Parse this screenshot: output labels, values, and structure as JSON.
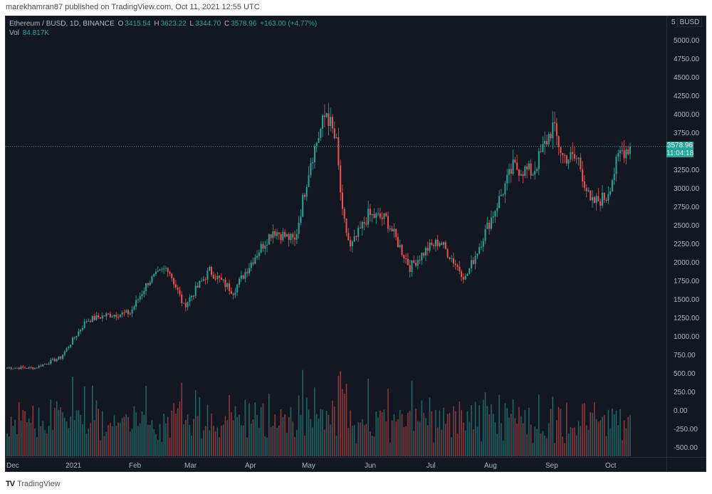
{
  "byline": "marekhamran87 published on TradingView.com, Oct 11, 2021 12:55 UTC",
  "legend": {
    "symbol": "Ethereum / BUSD, 1D, BINANCE",
    "open_label": "O",
    "open": "3415.54",
    "high_label": "H",
    "high": "3623.22",
    "low_label": "L",
    "low": "3344.70",
    "close_label": "C",
    "close": "3578.96",
    "change": "+163.00 (+4.77%)",
    "vol_label": "Vol",
    "vol": "84.817K"
  },
  "price_axis": {
    "unit_prefix": "5",
    "unit": "BUSD",
    "ticks": [
      "5000.00",
      "4750.00",
      "4500.00",
      "4250.00",
      "4000.00",
      "3750.00",
      "3250.00",
      "3000.00",
      "2750.00",
      "2500.00",
      "2250.00",
      "2000.00",
      "1750.00",
      "1500.00",
      "1250.00",
      "1000.00",
      "750.00",
      "500.00",
      "250.00",
      "0.00",
      "-250.00",
      "-500.00"
    ],
    "current_price": "3578.96",
    "countdown": "11:04:18"
  },
  "time_axis": {
    "ticks": [
      "Dec",
      "2021",
      "Feb",
      "Mar",
      "Apr",
      "May",
      "Jun",
      "Jul",
      "Aug",
      "Sep",
      "Oct"
    ]
  },
  "footer": {
    "brand": "TradingView",
    "logo": "TV"
  },
  "colors": {
    "up": "#26a69a",
    "down": "#ef5350",
    "bg": "#131722",
    "grid": "#2a2e39",
    "text": "#b2b5be"
  },
  "chart_data": {
    "type": "candlestick",
    "title": "Ethereum / BUSD, 1D, BINANCE",
    "xlabel": "",
    "ylabel": "BUSD",
    "ylim": [
      -600,
      5100
    ],
    "last_bar": {
      "open": 3415.54,
      "high": 3623.22,
      "low": 3344.7,
      "close": 3578.96,
      "change": 163.0,
      "change_pct": 4.77,
      "volume": "84.817K"
    },
    "x_ticks": [
      "Dec",
      "2021",
      "Feb",
      "Mar",
      "Apr",
      "May",
      "Jun",
      "Jul",
      "Aug",
      "Sep",
      "Oct"
    ],
    "approx_close_anchors": {
      "dates": [
        "2020-12-01",
        "2020-12-15",
        "2020-12-28",
        "2021-01-04",
        "2021-01-10",
        "2021-01-20",
        "2021-02-01",
        "2021-02-10",
        "2021-02-20",
        "2021-02-28",
        "2021-03-13",
        "2021-03-25",
        "2021-04-05",
        "2021-04-14",
        "2021-04-25",
        "2021-05-03",
        "2021-05-11",
        "2021-05-16",
        "2021-05-19",
        "2021-05-23",
        "2021-06-01",
        "2021-06-10",
        "2021-06-22",
        "2021-07-01",
        "2021-07-07",
        "2021-07-20",
        "2021-08-01",
        "2021-08-13",
        "2021-08-23",
        "2021-09-02",
        "2021-09-07",
        "2021-09-15",
        "2021-09-21",
        "2021-09-29",
        "2021-10-06",
        "2021-10-11"
      ],
      "closes": [
        590,
        590,
        730,
        1000,
        1230,
        1300,
        1330,
        1750,
        1950,
        1420,
        1900,
        1620,
        2100,
        2450,
        2300,
        3400,
        4050,
        3600,
        2650,
        2200,
        2650,
        2600,
        1950,
        2200,
        2300,
        1800,
        2550,
        3300,
        3230,
        3850,
        3450,
        3400,
        2800,
        2900,
        3500,
        3578.96
      ]
    },
    "volume_axis_note": "Volume histogram overlaid at bottom, colored by candle direction"
  }
}
